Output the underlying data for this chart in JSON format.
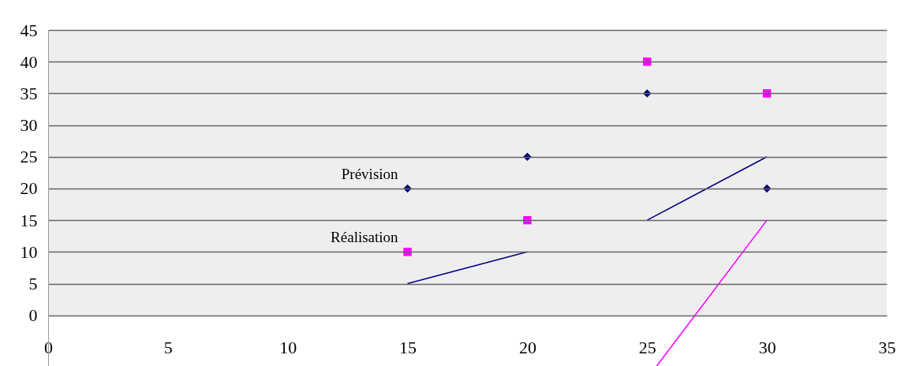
{
  "chart_data": {
    "type": "scatter",
    "xlim": [
      0,
      35
    ],
    "xticks": [
      0,
      5,
      10,
      15,
      20,
      25,
      30,
      35
    ],
    "ylim": [
      -8,
      45
    ],
    "yticks": [
      0,
      5,
      10,
      15,
      20,
      25,
      30,
      35,
      40,
      45
    ],
    "grid": "y",
    "bands": [
      {
        "axis": "y",
        "from": 0,
        "to": 45,
        "color": "#eeeeee"
      }
    ],
    "series": [
      {
        "marker": "diamond",
        "color": "#000080",
        "x": [
          15,
          20,
          25,
          30
        ],
        "values": [
          20,
          25,
          35,
          20
        ]
      },
      {
        "marker": "square",
        "color": "#ff00ff",
        "x": [
          15,
          20,
          25,
          30
        ],
        "values": [
          10,
          15,
          40,
          35
        ]
      },
      {
        "type": "line",
        "color": "#000080",
        "x": [
          15,
          20
        ],
        "values": [
          5,
          10
        ]
      },
      {
        "type": "line",
        "color": "#000080",
        "x": [
          25,
          30
        ],
        "values": [
          15,
          25
        ]
      },
      {
        "type": "line",
        "color": "#ff00ff",
        "x": [
          25.4,
          30
        ],
        "values": [
          -8,
          15
        ]
      }
    ],
    "annotations": [
      {
        "text": "Prévision",
        "x": 15,
        "y": 20
      },
      {
        "text": "Réalisation",
        "x": 15,
        "y": 10
      }
    ]
  }
}
